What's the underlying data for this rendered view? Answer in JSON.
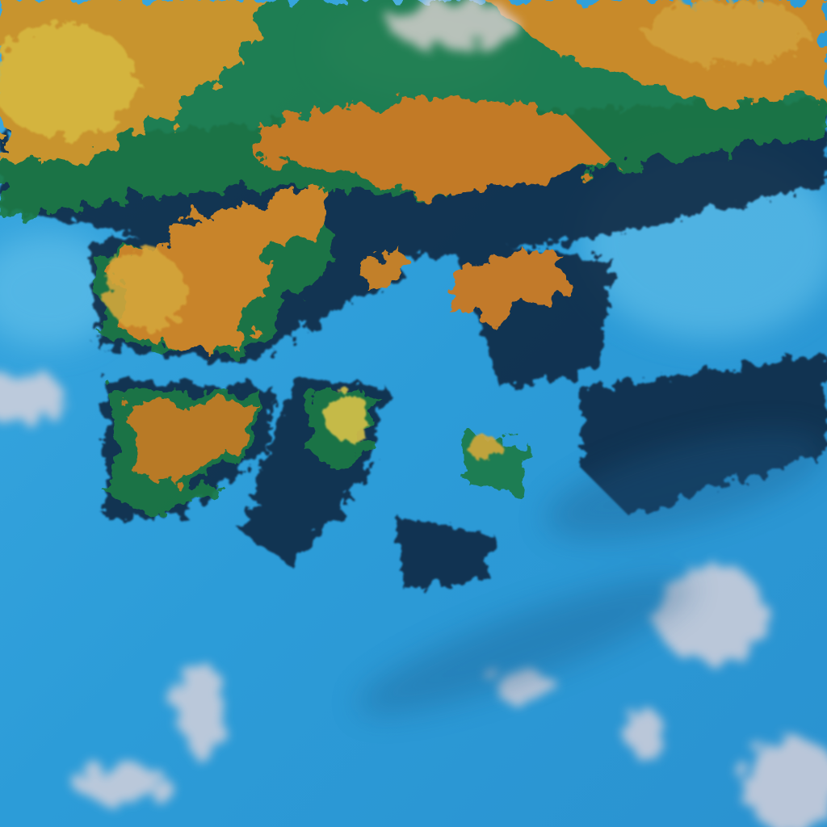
{
  "image": {
    "kind": "false-color satellite imagery",
    "colors": {
      "water": "#2a9ad6",
      "water_light": "#5cc0ea",
      "land_orange": "#c8862a",
      "land_yellow": "#d2b23c",
      "vegetation_green": "#1f6a3a",
      "ridge_dark": "#10203a",
      "cloud": "#e8d8dc"
    }
  }
}
